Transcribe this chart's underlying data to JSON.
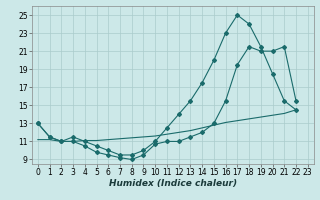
{
  "bg_color": "#cce8e8",
  "grid_color": "#aacccc",
  "line_color": "#1a6b6b",
  "line_width": 0.8,
  "marker": "D",
  "marker_size": 2.0,
  "xlim": [
    -0.5,
    23.5
  ],
  "ylim": [
    8.5,
    26.0
  ],
  "xticks": [
    0,
    1,
    2,
    3,
    4,
    5,
    6,
    7,
    8,
    9,
    10,
    11,
    12,
    13,
    14,
    15,
    16,
    17,
    18,
    19,
    20,
    21,
    22,
    23
  ],
  "yticks": [
    9,
    11,
    13,
    15,
    17,
    19,
    21,
    23,
    25
  ],
  "xlabel": "Humidex (Indice chaleur)",
  "xlabel_fontsize": 6.5,
  "tick_fontsize": 5.5,
  "curve1_x": [
    0,
    1,
    2,
    3,
    4,
    5,
    6,
    7,
    8,
    9,
    10,
    11,
    12,
    13,
    14,
    15,
    16,
    17,
    18,
    19,
    20,
    21,
    22
  ],
  "curve1_y": [
    13,
    11.5,
    11.0,
    11.5,
    11.0,
    10.5,
    10.0,
    9.5,
    9.5,
    10.0,
    11.0,
    12.5,
    14.0,
    15.5,
    17.5,
    20.0,
    23.0,
    25.0,
    24.0,
    21.5,
    18.5,
    15.5,
    14.5
  ],
  "curve2b_x": [
    0,
    1,
    2,
    3,
    4,
    5,
    6,
    7,
    8,
    9,
    10,
    11,
    12,
    13,
    14,
    15,
    16,
    17,
    18,
    19,
    20,
    21,
    22
  ],
  "curve2b_y": [
    13,
    11.5,
    11.0,
    11.0,
    10.5,
    9.8,
    9.5,
    9.2,
    9.0,
    9.5,
    10.7,
    11.0,
    11.0,
    11.5,
    12.0,
    13.0,
    15.5,
    19.5,
    21.5,
    21.0,
    21.0,
    21.5,
    15.5
  ],
  "curve3_x": [
    0,
    1,
    2,
    3,
    4,
    5,
    6,
    7,
    8,
    9,
    10,
    11,
    12,
    13,
    14,
    15,
    16,
    17,
    18,
    19,
    20,
    21,
    22
  ],
  "curve3_y": [
    11.2,
    11.2,
    11.0,
    11.0,
    11.1,
    11.1,
    11.2,
    11.3,
    11.4,
    11.5,
    11.6,
    11.8,
    12.0,
    12.2,
    12.5,
    12.8,
    13.1,
    13.3,
    13.5,
    13.7,
    13.9,
    14.1,
    14.5
  ]
}
